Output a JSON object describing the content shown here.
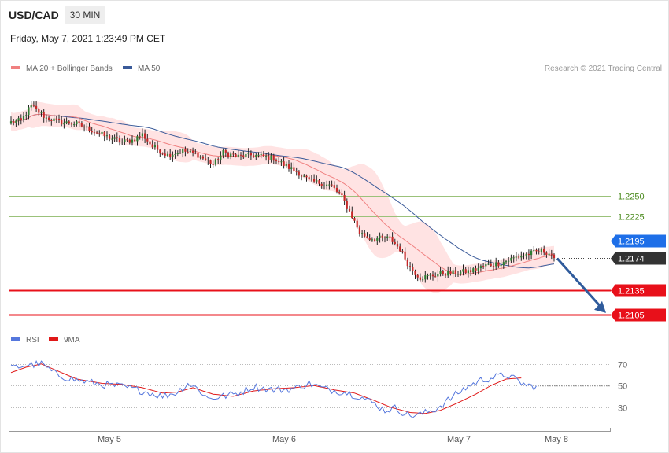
{
  "header": {
    "symbol": "USD/CAD",
    "timeframe": "30 MIN"
  },
  "datetime": "Friday, May 7, 2021 1:23:49 PM CET",
  "credit": "Research © 2021 Trading Central",
  "colors": {
    "up": "#2e7d32",
    "down": "#c62828",
    "ma20": "#f08080",
    "ma50": "#3a5a99",
    "band": "#ffe3e3",
    "green_line": "#9bc27a",
    "blue_level": "#1e6fe8",
    "red_level": "#e8101a",
    "current": "#333333",
    "arrow": "#2f5b9c",
    "rsi": "#5577dd",
    "rsi_ma": "#e01818"
  },
  "chart_data": [
    {
      "type": "candlestick",
      "legend": [
        {
          "name": "MA 20 + Bollinger Bands",
          "color": "#f08080"
        },
        {
          "name": "MA 50",
          "color": "#3a5a99"
        }
      ],
      "ylim": [
        2.2078,
        2.2398
      ],
      "x_labels": [
        "May 5",
        "May 6",
        "May 7",
        "May 8"
      ],
      "price_path": [
        [
          0,
          2.234
        ],
        [
          4,
          2.2342
        ],
        [
          8,
          2.236
        ],
        [
          14,
          2.2345
        ],
        [
          20,
          2.234
        ],
        [
          26,
          2.2338
        ],
        [
          32,
          2.233
        ],
        [
          38,
          2.2322
        ],
        [
          44,
          2.2316
        ],
        [
          48,
          2.2318
        ],
        [
          52,
          2.2325
        ],
        [
          56,
          2.231
        ],
        [
          62,
          2.23
        ],
        [
          68,
          2.2305
        ],
        [
          74,
          2.23
        ],
        [
          80,
          2.2288
        ],
        [
          84,
          2.2303
        ],
        [
          90,
          2.2298
        ],
        [
          96,
          2.23
        ],
        [
          100,
          2.2298
        ],
        [
          104,
          2.2296
        ],
        [
          108,
          2.2288
        ],
        [
          114,
          2.2278
        ],
        [
          118,
          2.2268
        ],
        [
          122,
          2.2266
        ],
        [
          127,
          2.2262
        ],
        [
          131,
          2.2248
        ],
        [
          135,
          2.2225
        ],
        [
          138,
          2.2205
        ],
        [
          142,
          2.2198
        ],
        [
          150,
          2.2198
        ],
        [
          154,
          2.2185
        ],
        [
          158,
          2.2162
        ],
        [
          162,
          2.215
        ],
        [
          166,
          2.2152
        ],
        [
          170,
          2.2155
        ],
        [
          176,
          2.2156
        ],
        [
          182,
          2.2158
        ],
        [
          188,
          2.2165
        ],
        [
          194,
          2.2168
        ],
        [
          200,
          2.2175
        ],
        [
          206,
          2.218
        ],
        [
          210,
          2.2183
        ],
        [
          215,
          2.2178
        ]
      ],
      "levels": [
        {
          "value": 2.225,
          "label": "1.2250",
          "style": "resistance-3"
        },
        {
          "value": 2.2225,
          "label": "1.2225",
          "style": "resistance-2"
        },
        {
          "value": 2.2195,
          "label": "1.2195",
          "style": "pivot"
        },
        {
          "value": 2.2174,
          "label": "1.2174",
          "style": "current"
        },
        {
          "value": 2.2135,
          "label": "1.2135",
          "style": "target-1"
        },
        {
          "value": 2.2105,
          "label": "1.2105",
          "style": "target-2"
        }
      ],
      "forecast": "down-arrow toward 1.2105"
    },
    {
      "type": "line",
      "legend": [
        {
          "name": "RSI",
          "color": "#5577dd"
        },
        {
          "name": "9MA",
          "color": "#e01818"
        }
      ],
      "ylim": [
        10,
        83
      ],
      "y_ticks": [
        "70",
        "50",
        "30"
      ],
      "rsi_path": [
        [
          0,
          66
        ],
        [
          6,
          69
        ],
        [
          12,
          70
        ],
        [
          18,
          60
        ],
        [
          26,
          55
        ],
        [
          36,
          51
        ],
        [
          44,
          49
        ],
        [
          52,
          45
        ],
        [
          60,
          40
        ],
        [
          66,
          44
        ],
        [
          70,
          52
        ],
        [
          74,
          47
        ],
        [
          78,
          38
        ],
        [
          84,
          40
        ],
        [
          90,
          43
        ],
        [
          96,
          49
        ],
        [
          104,
          46
        ],
        [
          112,
          47
        ],
        [
          118,
          52
        ],
        [
          124,
          47
        ],
        [
          132,
          44
        ],
        [
          138,
          40
        ],
        [
          144,
          33
        ],
        [
          148,
          27
        ],
        [
          152,
          29
        ],
        [
          158,
          22
        ],
        [
          162,
          23
        ],
        [
          168,
          28
        ],
        [
          174,
          38
        ],
        [
          180,
          48
        ],
        [
          186,
          55
        ],
        [
          192,
          58
        ],
        [
          196,
          60
        ],
        [
          200,
          55
        ],
        [
          204,
          50
        ],
        [
          208,
          49
        ]
      ],
      "ma_path": [
        [
          0,
          62
        ],
        [
          6,
          67
        ],
        [
          12,
          70
        ],
        [
          18,
          64
        ],
        [
          26,
          56
        ],
        [
          36,
          52
        ],
        [
          44,
          51
        ],
        [
          52,
          48
        ],
        [
          60,
          43
        ],
        [
          66,
          44
        ],
        [
          72,
          48
        ],
        [
          80,
          42
        ],
        [
          88,
          40
        ],
        [
          96,
          45
        ],
        [
          104,
          47
        ],
        [
          112,
          48
        ],
        [
          120,
          50
        ],
        [
          128,
          46
        ],
        [
          136,
          43
        ],
        [
          144,
          36
        ],
        [
          150,
          30
        ],
        [
          158,
          25
        ],
        [
          164,
          24
        ],
        [
          170,
          27
        ],
        [
          176,
          33
        ],
        [
          184,
          42
        ],
        [
          190,
          50
        ],
        [
          196,
          56
        ],
        [
          202,
          57
        ]
      ]
    }
  ]
}
